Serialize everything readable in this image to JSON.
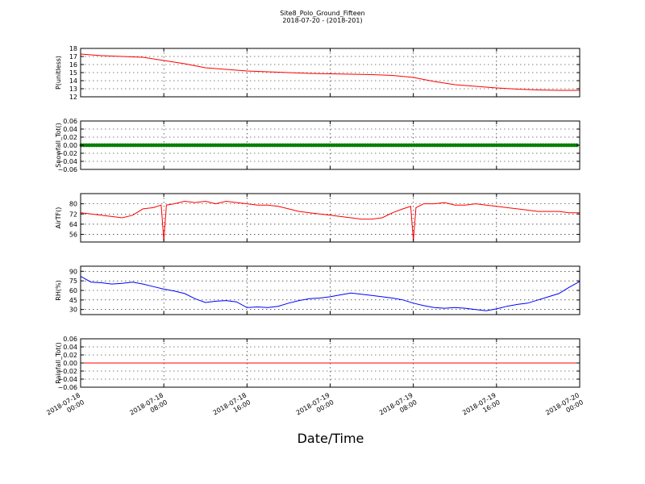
{
  "figure": {
    "title_line1": "Site8_Polo_Ground_Fifteen",
    "title_line2": "2018-07-20 - (2018-201)",
    "xlabel": "Date/Time"
  },
  "chart_data": [
    {
      "type": "line",
      "ylabel": "P(unitless)",
      "ylim": [
        12,
        18
      ],
      "yticks": [
        12,
        13,
        14,
        15,
        16,
        17,
        18
      ],
      "color": "#ff0000",
      "grid": true,
      "x": [
        "2018-07-18 00:00",
        "2018-07-18 02:00",
        "2018-07-18 04:00",
        "2018-07-18 06:00",
        "2018-07-18 08:00",
        "2018-07-18 10:00",
        "2018-07-18 12:00",
        "2018-07-18 14:00",
        "2018-07-18 16:00",
        "2018-07-18 18:00",
        "2018-07-18 20:00",
        "2018-07-18 22:00",
        "2018-07-19 00:00",
        "2018-07-19 02:00",
        "2018-07-19 04:00",
        "2018-07-19 06:00",
        "2018-07-19 08:00",
        "2018-07-19 10:00",
        "2018-07-19 12:00",
        "2018-07-19 14:00",
        "2018-07-19 16:00",
        "2018-07-19 18:00",
        "2018-07-19 20:00",
        "2018-07-19 22:00",
        "2018-07-20 00:00"
      ],
      "y": [
        17.3,
        17.1,
        17.0,
        16.9,
        16.5,
        16.1,
        15.6,
        15.4,
        15.2,
        15.1,
        15.0,
        14.9,
        14.85,
        14.8,
        14.75,
        14.65,
        14.4,
        13.9,
        13.5,
        13.3,
        13.1,
        12.95,
        12.85,
        12.8,
        12.8
      ]
    },
    {
      "type": "line",
      "ylabel": "Snowfall_Tot()",
      "ylim": [
        -0.06,
        0.06
      ],
      "yticks": [
        -0.06,
        -0.04,
        -0.02,
        0.0,
        0.02,
        0.04,
        0.06
      ],
      "ytick_labels": [
        "−0.06",
        "−0.04",
        "−0.02",
        "0.00",
        "0.02",
        "0.04",
        "0.06"
      ],
      "color": "#008000",
      "marker": "dot",
      "grid": true,
      "x_range": [
        "2018-07-18 00:00",
        "2018-07-20 00:00"
      ],
      "constant_value": 0.0
    },
    {
      "type": "line",
      "ylabel": "AirTF()",
      "ylim": [
        50,
        88
      ],
      "yticks": [
        56,
        64,
        72,
        80
      ],
      "color": "#ff0000",
      "grid": true,
      "x": [
        "2018-07-18 00:00",
        "2018-07-18 01:00",
        "2018-07-18 02:00",
        "2018-07-18 03:00",
        "2018-07-18 04:00",
        "2018-07-18 05:00",
        "2018-07-18 06:00",
        "2018-07-18 07:00",
        "2018-07-18 07:45",
        "2018-07-18 08:00",
        "2018-07-18 08:15",
        "2018-07-18 09:00",
        "2018-07-18 10:00",
        "2018-07-18 11:00",
        "2018-07-18 12:00",
        "2018-07-18 13:00",
        "2018-07-18 14:00",
        "2018-07-18 15:00",
        "2018-07-18 16:00",
        "2018-07-18 17:00",
        "2018-07-18 18:00",
        "2018-07-18 19:00",
        "2018-07-18 20:00",
        "2018-07-18 21:00",
        "2018-07-18 22:00",
        "2018-07-18 23:00",
        "2018-07-19 00:00",
        "2018-07-19 01:00",
        "2018-07-19 02:00",
        "2018-07-19 03:00",
        "2018-07-19 04:00",
        "2018-07-19 05:00",
        "2018-07-19 06:00",
        "2018-07-19 07:00",
        "2018-07-19 07:45",
        "2018-07-19 08:00",
        "2018-07-19 08:15",
        "2018-07-19 09:00",
        "2018-07-19 10:00",
        "2018-07-19 11:00",
        "2018-07-19 12:00",
        "2018-07-19 13:00",
        "2018-07-19 14:00",
        "2018-07-19 15:00",
        "2018-07-19 16:00",
        "2018-07-19 17:00",
        "2018-07-19 18:00",
        "2018-07-19 19:00",
        "2018-07-19 20:00",
        "2018-07-19 21:00",
        "2018-07-19 22:00",
        "2018-07-19 23:00",
        "2018-07-20 00:00"
      ],
      "y": [
        73,
        72,
        71,
        70,
        69,
        71,
        76,
        77,
        79,
        51,
        79,
        80,
        82,
        81,
        82,
        80,
        82,
        81,
        80,
        79,
        79,
        78,
        76,
        74,
        73,
        72,
        71,
        70,
        69,
        68,
        68,
        69,
        73,
        76,
        78,
        51,
        77,
        80,
        80,
        81,
        79,
        79,
        80,
        79,
        78,
        77,
        76,
        75,
        74,
        74,
        74,
        73,
        73
      ]
    },
    {
      "type": "line",
      "ylabel": "RH(%)",
      "ylim": [
        22,
        98
      ],
      "yticks": [
        30,
        45,
        60,
        75,
        90
      ],
      "color": "#0000ff",
      "grid": true,
      "x": [
        "2018-07-18 00:00",
        "2018-07-18 01:00",
        "2018-07-18 02:00",
        "2018-07-18 03:00",
        "2018-07-18 04:00",
        "2018-07-18 05:00",
        "2018-07-18 06:00",
        "2018-07-18 07:00",
        "2018-07-18 08:00",
        "2018-07-18 09:00",
        "2018-07-18 10:00",
        "2018-07-18 11:00",
        "2018-07-18 12:00",
        "2018-07-18 13:00",
        "2018-07-18 14:00",
        "2018-07-18 15:00",
        "2018-07-18 16:00",
        "2018-07-18 17:00",
        "2018-07-18 18:00",
        "2018-07-18 19:00",
        "2018-07-18 20:00",
        "2018-07-18 21:00",
        "2018-07-18 22:00",
        "2018-07-18 23:00",
        "2018-07-19 00:00",
        "2018-07-19 01:00",
        "2018-07-19 02:00",
        "2018-07-19 03:00",
        "2018-07-19 04:00",
        "2018-07-19 05:00",
        "2018-07-19 06:00",
        "2018-07-19 07:00",
        "2018-07-19 08:00",
        "2018-07-19 09:00",
        "2018-07-19 10:00",
        "2018-07-19 11:00",
        "2018-07-19 12:00",
        "2018-07-19 13:00",
        "2018-07-19 14:00",
        "2018-07-19 15:00",
        "2018-07-19 16:00",
        "2018-07-19 17:00",
        "2018-07-19 18:00",
        "2018-07-19 19:00",
        "2018-07-19 20:00",
        "2018-07-19 21:00",
        "2018-07-19 22:00",
        "2018-07-19 23:00",
        "2018-07-20 00:00"
      ],
      "y": [
        82,
        73,
        72,
        70,
        71,
        73,
        70,
        66,
        62,
        59,
        55,
        47,
        41,
        43,
        44,
        42,
        33,
        34,
        33,
        35,
        40,
        44,
        47,
        48,
        50,
        53,
        56,
        54,
        52,
        50,
        48,
        45,
        40,
        36,
        33,
        32,
        33,
        32,
        30,
        28,
        31,
        35,
        38,
        40,
        45,
        50,
        55,
        65,
        74
      ]
    },
    {
      "type": "line",
      "ylabel": "Rainfall_Tot()",
      "ylim": [
        -0.06,
        0.06
      ],
      "yticks": [
        -0.06,
        -0.04,
        -0.02,
        0.0,
        0.02,
        0.04,
        0.06
      ],
      "ytick_labels": [
        "−0.06",
        "−0.04",
        "−0.02",
        "0.00",
        "0.02",
        "0.04",
        "0.06"
      ],
      "color": "#ff0000",
      "grid": true,
      "x_range": [
        "2018-07-18 00:00",
        "2018-07-20 00:00"
      ],
      "constant_value": 0.0
    }
  ],
  "x_axis": {
    "range": [
      "2018-07-18 00:00",
      "2018-07-20 00:00"
    ],
    "ticks": [
      "2018-07-18 00:00",
      "2018-07-18 08:00",
      "2018-07-18 16:00",
      "2018-07-19 00:00",
      "2018-07-19 08:00",
      "2018-07-19 16:00",
      "2018-07-20 00:00"
    ],
    "tick_labels": [
      [
        "2018-07-18",
        "00:00"
      ],
      [
        "2018-07-18",
        "08:00"
      ],
      [
        "2018-07-18",
        "16:00"
      ],
      [
        "2018-07-19",
        "00:00"
      ],
      [
        "2018-07-19",
        "08:00"
      ],
      [
        "2018-07-19",
        "16:00"
      ],
      [
        "2018-07-20",
        "00:00"
      ]
    ]
  }
}
